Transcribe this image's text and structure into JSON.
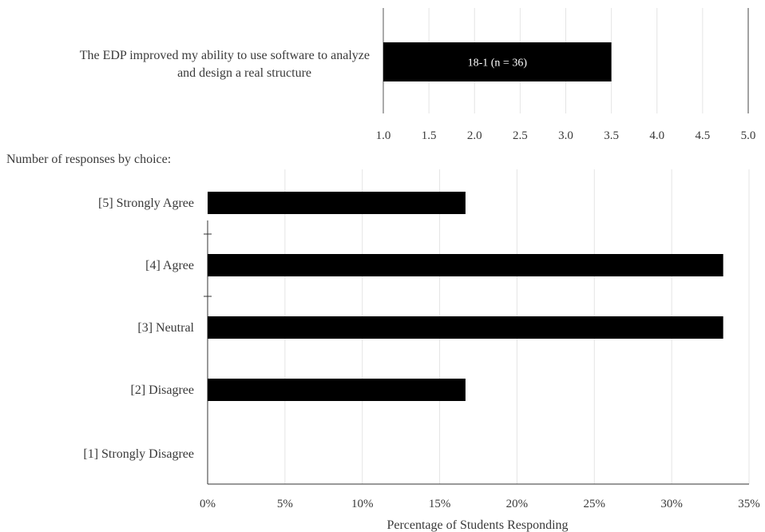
{
  "chart_data": [
    {
      "type": "bar",
      "orientation": "horizontal",
      "categories": [
        "The EDP improved my ability to use software to analyze and design a real structure"
      ],
      "category_lines": [
        "The EDP improved my ability to use software to analyze",
        "and design a real structure"
      ],
      "values": [
        3.5
      ],
      "bar_label": "18-1 (n = 36)",
      "xlim": [
        1.0,
        5.0
      ],
      "x_ticks": [
        "1.0",
        "1.5",
        "2.0",
        "2.5",
        "3.0",
        "3.5",
        "4.0",
        "4.5",
        "5.0"
      ],
      "grid": true,
      "bar_color": "#000000"
    },
    {
      "type": "bar",
      "orientation": "horizontal",
      "heading": "Number of responses by choice:",
      "categories": [
        "[5] Strongly Agree",
        "[4] Agree",
        "[3] Neutral",
        "[2] Disagree",
        "[1] Strongly Disagree"
      ],
      "values": [
        16.67,
        33.33,
        33.33,
        16.67,
        0
      ],
      "xlabel": "Percentage of Students Responding",
      "xlim": [
        0,
        35
      ],
      "x_ticks": [
        "0%",
        "5%",
        "10%",
        "15%",
        "20%",
        "25%",
        "30%",
        "35%"
      ],
      "grid": true,
      "bar_color": "#000000"
    }
  ]
}
